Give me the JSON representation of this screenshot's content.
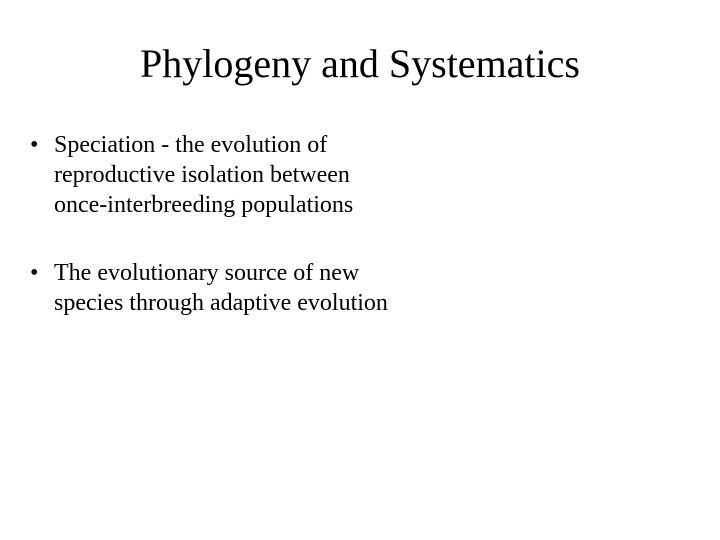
{
  "slide": {
    "title": "Phylogeny and Systematics",
    "bullets": [
      "Speciation - the evolution of reproductive isolation between once-interbreeding populations",
      "The evolutionary source of new species through adaptive evolution"
    ]
  },
  "style": {
    "background_color": "#ffffff",
    "text_color": "#000000",
    "font_family": "Times New Roman",
    "title_fontsize": 40,
    "body_fontsize": 24,
    "slide_width": 720,
    "slide_height": 540
  }
}
